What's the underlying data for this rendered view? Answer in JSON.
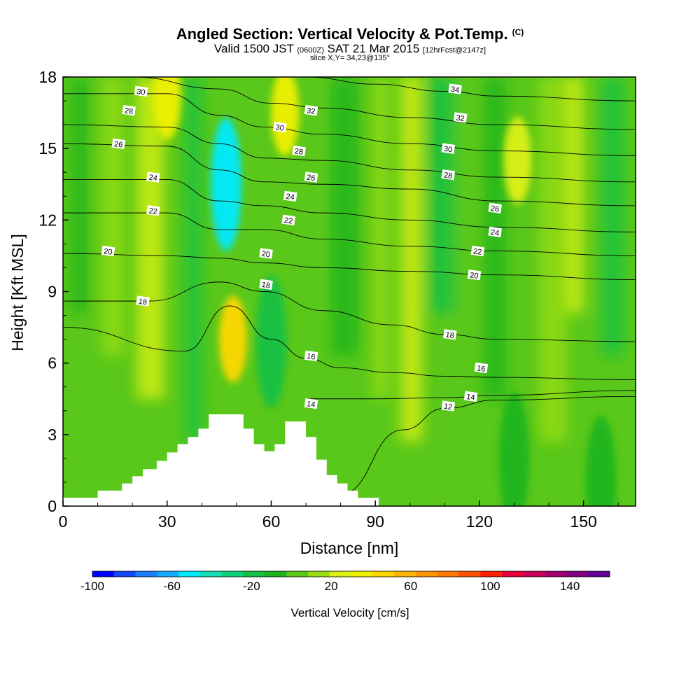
{
  "header": {
    "title": "Angled Section: Vertical Velocity & Pot.Temp.",
    "title_units": "(C)",
    "valid_prefix": "Valid 1500 JST",
    "valid_utc": "(0600Z)",
    "valid_date": "SAT 21 Mar 2015",
    "forecast": "[12hrFcst@2147z]",
    "slice": "slice X,Y= 34,23@135°"
  },
  "chart_data": {
    "type": "heatmap",
    "xlabel": "Distance [nm]",
    "ylabel": "Height [Kft MSL]",
    "xlim": [
      0,
      165
    ],
    "ylim": [
      0,
      18
    ],
    "x_ticks": [
      0,
      30,
      60,
      90,
      120,
      150
    ],
    "y_ticks": [
      0,
      3,
      6,
      9,
      12,
      15,
      18
    ],
    "grid": false,
    "colorbar": {
      "label": "Vertical Velocity [cm/s]",
      "range": [
        -100,
        160
      ],
      "tick_values": [
        -100,
        -60,
        -20,
        20,
        60,
        100,
        140
      ],
      "colors": [
        "#0000ff",
        "#1448ff",
        "#1e7dff",
        "#16aaff",
        "#00eaff",
        "#12e0b4",
        "#10d27a",
        "#14c044",
        "#1cb41c",
        "#5ac81a",
        "#9ade14",
        "#dcf014",
        "#f0f000",
        "#ffd700",
        "#ffb400",
        "#ff9600",
        "#ff7800",
        "#ff5000",
        "#ff1e00",
        "#e6003c",
        "#c8005a",
        "#a0006e",
        "#820082",
        "#640096"
      ]
    },
    "terrain_profile": [
      [
        0,
        0.35
      ],
      [
        10,
        0.35
      ],
      [
        10,
        0.65
      ],
      [
        17,
        0.65
      ],
      [
        17,
        0.95
      ],
      [
        20,
        0.95
      ],
      [
        20,
        1.25
      ],
      [
        23,
        1.25
      ],
      [
        23,
        1.55
      ],
      [
        27,
        1.55
      ],
      [
        27,
        1.9
      ],
      [
        30,
        1.9
      ],
      [
        30,
        2.25
      ],
      [
        33,
        2.25
      ],
      [
        33,
        2.6
      ],
      [
        36,
        2.6
      ],
      [
        36,
        2.9
      ],
      [
        39,
        2.9
      ],
      [
        39,
        3.25
      ],
      [
        42,
        3.25
      ],
      [
        42,
        3.85
      ],
      [
        52,
        3.85
      ],
      [
        52,
        3.25
      ],
      [
        55,
        3.25
      ],
      [
        55,
        2.6
      ],
      [
        58,
        2.6
      ],
      [
        58,
        2.3
      ],
      [
        61,
        2.3
      ],
      [
        61,
        2.6
      ],
      [
        64,
        2.6
      ],
      [
        64,
        3.55
      ],
      [
        70,
        3.55
      ],
      [
        70,
        2.9
      ],
      [
        73,
        2.9
      ],
      [
        73,
        1.95
      ],
      [
        76,
        1.95
      ],
      [
        76,
        1.3
      ],
      [
        79,
        1.3
      ],
      [
        79,
        0.95
      ],
      [
        82,
        0.95
      ],
      [
        82,
        0.65
      ],
      [
        85,
        0.65
      ],
      [
        85,
        0.35
      ],
      [
        91,
        0.35
      ]
    ],
    "updraft_cores": [
      {
        "x": 30,
        "y": 17.2,
        "value": 40
      },
      {
        "x": 49,
        "y": 7.0,
        "value": 50
      },
      {
        "x": 64,
        "y": 16.5,
        "value": 30
      },
      {
        "x": 131,
        "y": 14.5,
        "value": 20
      }
    ],
    "downdraft_cores": [
      {
        "x": 47,
        "y": 13.5,
        "value": -50
      },
      {
        "x": 60,
        "y": 6.9,
        "value": -20
      },
      {
        "x": 130,
        "y": 2.0,
        "value": -10
      },
      {
        "x": 155,
        "y": 1.0,
        "value": -10
      }
    ],
    "theta_contours": [
      {
        "label": "12",
        "points": [
          [
            80,
            0.5
          ],
          [
            98,
            3.2
          ],
          [
            110,
            4.1
          ],
          [
            125,
            4.45
          ],
          [
            165,
            4.6
          ]
        ]
      },
      {
        "label": "14",
        "points": [
          [
            70,
            4.5
          ],
          [
            90,
            4.5
          ],
          [
            110,
            4.55
          ],
          [
            125,
            4.65
          ],
          [
            165,
            4.85
          ]
        ]
      },
      {
        "label": "16",
        "points": [
          [
            0,
            7.5
          ],
          [
            35,
            6.5
          ],
          [
            48,
            8.4
          ],
          [
            60,
            7.0
          ],
          [
            70,
            6.2
          ],
          [
            80,
            5.8
          ],
          [
            95,
            5.6
          ],
          [
            110,
            5.45
          ],
          [
            125,
            5.4
          ],
          [
            165,
            5.3
          ]
        ]
      },
      {
        "label": "18",
        "points": [
          [
            0,
            8.6
          ],
          [
            25,
            8.6
          ],
          [
            45,
            9.4
          ],
          [
            58,
            9.0
          ],
          [
            75,
            8.2
          ],
          [
            95,
            7.6
          ],
          [
            110,
            7.2
          ],
          [
            125,
            7.0
          ],
          [
            165,
            6.9
          ]
        ]
      },
      {
        "label": "20",
        "points": [
          [
            0,
            10.6
          ],
          [
            30,
            10.5
          ],
          [
            45,
            10.4
          ],
          [
            58,
            10.2
          ],
          [
            75,
            10.0
          ],
          [
            100,
            9.85
          ],
          [
            125,
            9.7
          ],
          [
            165,
            9.5
          ]
        ]
      },
      {
        "label": "22",
        "points": [
          [
            0,
            12.3
          ],
          [
            30,
            12.3
          ],
          [
            45,
            11.6
          ],
          [
            58,
            11.6
          ],
          [
            75,
            11.2
          ],
          [
            100,
            10.9
          ],
          [
            125,
            10.7
          ],
          [
            165,
            10.5
          ]
        ]
      },
      {
        "label": "24",
        "points": [
          [
            0,
            13.7
          ],
          [
            30,
            13.7
          ],
          [
            45,
            12.8
          ],
          [
            58,
            12.6
          ],
          [
            75,
            12.3
          ],
          [
            100,
            12.0
          ],
          [
            125,
            11.7
          ],
          [
            165,
            11.5
          ]
        ]
      },
      {
        "label": "26",
        "points": [
          [
            0,
            15.2
          ],
          [
            30,
            15.1
          ],
          [
            45,
            14.1
          ],
          [
            58,
            13.6
          ],
          [
            75,
            13.5
          ],
          [
            100,
            13.3
          ],
          [
            125,
            12.8
          ],
          [
            165,
            12.6
          ]
        ]
      },
      {
        "label": "28",
        "points": [
          [
            0,
            16.0
          ],
          [
            30,
            15.9
          ],
          [
            45,
            15.2
          ],
          [
            58,
            14.6
          ],
          [
            75,
            14.5
          ],
          [
            100,
            14.1
          ],
          [
            125,
            13.8
          ],
          [
            165,
            13.6
          ]
        ]
      },
      {
        "label": "30",
        "points": [
          [
            0,
            17.3
          ],
          [
            30,
            17.3
          ],
          [
            45,
            16.4
          ],
          [
            58,
            15.9
          ],
          [
            75,
            15.6
          ],
          [
            100,
            15.2
          ],
          [
            125,
            14.9
          ],
          [
            165,
            14.7
          ]
        ]
      },
      {
        "label": "32",
        "points": [
          [
            20,
            18.0
          ],
          [
            45,
            17.5
          ],
          [
            60,
            16.9
          ],
          [
            75,
            16.7
          ],
          [
            100,
            16.3
          ],
          [
            125,
            16.0
          ],
          [
            165,
            15.8
          ]
        ]
      },
      {
        "label": "34",
        "points": [
          [
            70,
            18.0
          ],
          [
            90,
            17.7
          ],
          [
            110,
            17.4
          ],
          [
            125,
            17.2
          ],
          [
            165,
            17.0
          ]
        ]
      }
    ],
    "contour_labels": [
      {
        "text": "30",
        "x": 22.5,
        "y": 17.4
      },
      {
        "text": "28",
        "x": 19,
        "y": 16.6
      },
      {
        "text": "26",
        "x": 16,
        "y": 15.2
      },
      {
        "text": "24",
        "x": 26,
        "y": 13.8
      },
      {
        "text": "22",
        "x": 26,
        "y": 12.4
      },
      {
        "text": "20",
        "x": 13,
        "y": 10.7
      },
      {
        "text": "18",
        "x": 23,
        "y": 8.6
      },
      {
        "text": "32",
        "x": 71.5,
        "y": 16.6
      },
      {
        "text": "30",
        "x": 62.5,
        "y": 15.9
      },
      {
        "text": "28",
        "x": 68,
        "y": 14.9
      },
      {
        "text": "26",
        "x": 71.5,
        "y": 13.8
      },
      {
        "text": "24",
        "x": 65.5,
        "y": 13.0
      },
      {
        "text": "22",
        "x": 65,
        "y": 12.0
      },
      {
        "text": "20",
        "x": 58.5,
        "y": 10.6
      },
      {
        "text": "18",
        "x": 58.5,
        "y": 9.3
      },
      {
        "text": "16",
        "x": 71.5,
        "y": 6.3
      },
      {
        "text": "14",
        "x": 71.5,
        "y": 4.3
      },
      {
        "text": "34",
        "x": 113,
        "y": 17.5
      },
      {
        "text": "32",
        "x": 114.5,
        "y": 16.3
      },
      {
        "text": "30",
        "x": 111,
        "y": 15.0
      },
      {
        "text": "28",
        "x": 111,
        "y": 13.9
      },
      {
        "text": "26",
        "x": 124.5,
        "y": 12.5
      },
      {
        "text": "24",
        "x": 124.5,
        "y": 11.5
      },
      {
        "text": "22",
        "x": 119.5,
        "y": 10.7
      },
      {
        "text": "20",
        "x": 118.5,
        "y": 9.7
      },
      {
        "text": "18",
        "x": 111.5,
        "y": 7.2
      },
      {
        "text": "16",
        "x": 120.5,
        "y": 5.8
      },
      {
        "text": "14",
        "x": 117.5,
        "y": 4.6
      },
      {
        "text": "12",
        "x": 111,
        "y": 4.2
      }
    ]
  }
}
